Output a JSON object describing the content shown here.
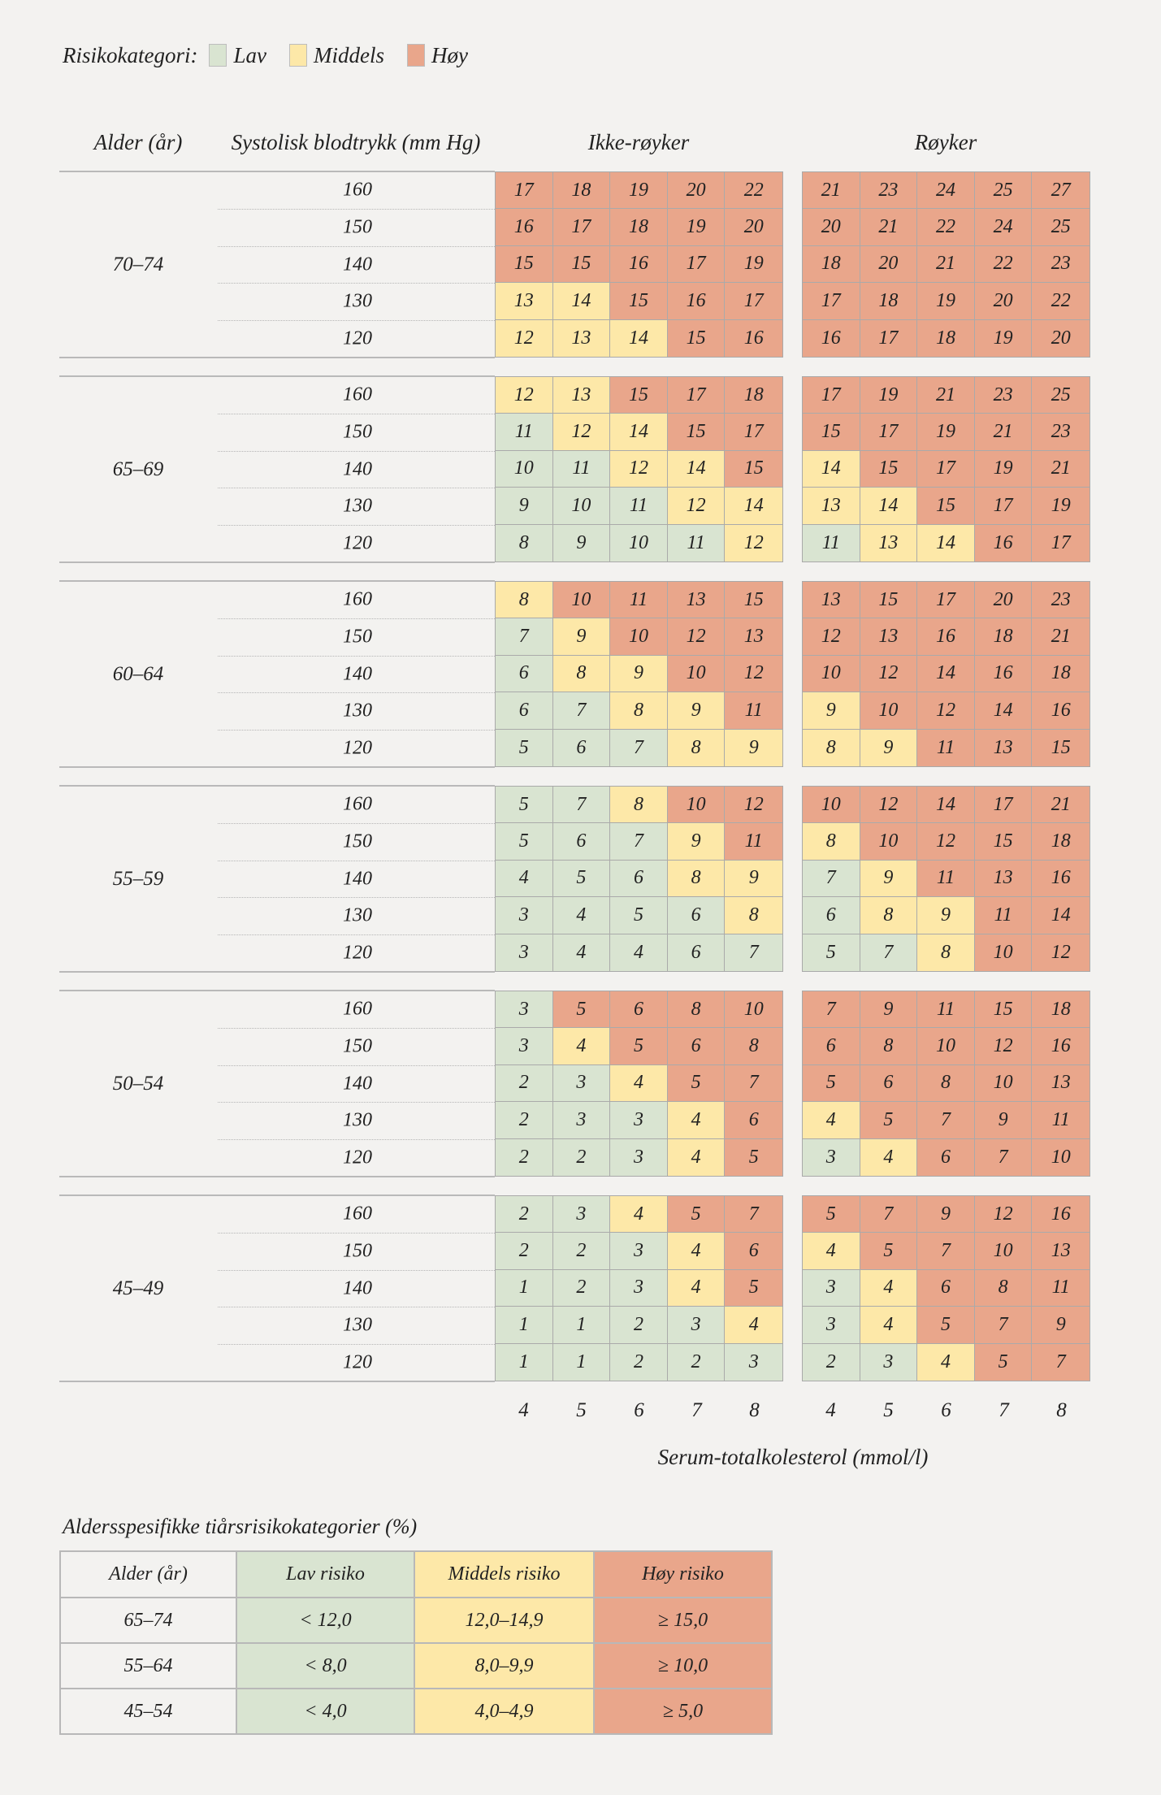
{
  "colors": {
    "L": "#d9e4d1",
    "M": "#fde8a8",
    "H": "#e9a68b"
  },
  "legend": {
    "title": "Risikokategori:",
    "items": [
      {
        "key": "L",
        "label": "Lav"
      },
      {
        "key": "M",
        "label": "Middels"
      },
      {
        "key": "H",
        "label": "Høy"
      }
    ]
  },
  "headers": {
    "age": "Alder (år)",
    "bp": "Systolisk blodtrykk (mm Hg)",
    "nonsmoker": "Ikke-røyker",
    "smoker": "Røyker"
  },
  "blocks": [
    {
      "age": "70–74",
      "rows": [
        {
          "bp": "160",
          "n": [
            "17",
            "18",
            "19",
            "20",
            "22"
          ],
          "nc": "HHHHH",
          "s": [
            "21",
            "23",
            "24",
            "25",
            "27"
          ],
          "sc": "HHHHH"
        },
        {
          "bp": "150",
          "n": [
            "16",
            "17",
            "18",
            "19",
            "20"
          ],
          "nc": "HHHHH",
          "s": [
            "20",
            "21",
            "22",
            "24",
            "25"
          ],
          "sc": "HHHHH"
        },
        {
          "bp": "140",
          "n": [
            "15",
            "15",
            "16",
            "17",
            "19"
          ],
          "nc": "HHHHH",
          "s": [
            "18",
            "20",
            "21",
            "22",
            "23"
          ],
          "sc": "HHHHH"
        },
        {
          "bp": "130",
          "n": [
            "13",
            "14",
            "15",
            "16",
            "17"
          ],
          "nc": "MMHHH",
          "s": [
            "17",
            "18",
            "19",
            "20",
            "22"
          ],
          "sc": "HHHHH"
        },
        {
          "bp": "120",
          "n": [
            "12",
            "13",
            "14",
            "15",
            "16"
          ],
          "nc": "MMMHH",
          "s": [
            "16",
            "17",
            "18",
            "19",
            "20"
          ],
          "sc": "HHHHH"
        }
      ]
    },
    {
      "age": "65–69",
      "rows": [
        {
          "bp": "160",
          "n": [
            "12",
            "13",
            "15",
            "17",
            "18"
          ],
          "nc": "MMHHH",
          "s": [
            "17",
            "19",
            "21",
            "23",
            "25"
          ],
          "sc": "HHHHH"
        },
        {
          "bp": "150",
          "n": [
            "11",
            "12",
            "14",
            "15",
            "17"
          ],
          "nc": "LMMHH",
          "s": [
            "15",
            "17",
            "19",
            "21",
            "23"
          ],
          "sc": "HHHHH"
        },
        {
          "bp": "140",
          "n": [
            "10",
            "11",
            "12",
            "14",
            "15"
          ],
          "nc": "LLMMH",
          "s": [
            "14",
            "15",
            "17",
            "19",
            "21"
          ],
          "sc": "MHHHH"
        },
        {
          "bp": "130",
          "n": [
            "9",
            "10",
            "11",
            "12",
            "14"
          ],
          "nc": "LLLMM",
          "s": [
            "13",
            "14",
            "15",
            "17",
            "19"
          ],
          "sc": "MMHHH"
        },
        {
          "bp": "120",
          "n": [
            "8",
            "9",
            "10",
            "11",
            "12"
          ],
          "nc": "LLLLM",
          "s": [
            "11",
            "13",
            "14",
            "16",
            "17"
          ],
          "sc": "LMMHH"
        }
      ]
    },
    {
      "age": "60–64",
      "rows": [
        {
          "bp": "160",
          "n": [
            "8",
            "10",
            "11",
            "13",
            "15"
          ],
          "nc": "MHHHH",
          "s": [
            "13",
            "15",
            "17",
            "20",
            "23"
          ],
          "sc": "HHHHH"
        },
        {
          "bp": "150",
          "n": [
            "7",
            "9",
            "10",
            "12",
            "13"
          ],
          "nc": "LMHHH",
          "s": [
            "12",
            "13",
            "16",
            "18",
            "21"
          ],
          "sc": "HHHHH"
        },
        {
          "bp": "140",
          "n": [
            "6",
            "8",
            "9",
            "10",
            "12"
          ],
          "nc": "LMMHH",
          "s": [
            "10",
            "12",
            "14",
            "16",
            "18"
          ],
          "sc": "HHHHH"
        },
        {
          "bp": "130",
          "n": [
            "6",
            "7",
            "8",
            "9",
            "11"
          ],
          "nc": "LLMMH",
          "s": [
            "9",
            "10",
            "12",
            "14",
            "16"
          ],
          "sc": "MHHHH"
        },
        {
          "bp": "120",
          "n": [
            "5",
            "6",
            "7",
            "8",
            "9"
          ],
          "nc": "LLLMM",
          "s": [
            "8",
            "9",
            "11",
            "13",
            "15"
          ],
          "sc": "MMHHH"
        }
      ]
    },
    {
      "age": "55–59",
      "rows": [
        {
          "bp": "160",
          "n": [
            "5",
            "7",
            "8",
            "10",
            "12"
          ],
          "nc": "LLMHH",
          "s": [
            "10",
            "12",
            "14",
            "17",
            "21"
          ],
          "sc": "HHHHH"
        },
        {
          "bp": "150",
          "n": [
            "5",
            "6",
            "7",
            "9",
            "11"
          ],
          "nc": "LLLMH",
          "s": [
            "8",
            "10",
            "12",
            "15",
            "18"
          ],
          "sc": "MHHHH"
        },
        {
          "bp": "140",
          "n": [
            "4",
            "5",
            "6",
            "8",
            "9"
          ],
          "nc": "LLLMM",
          "s": [
            "7",
            "9",
            "11",
            "13",
            "16"
          ],
          "sc": "LMHHH"
        },
        {
          "bp": "130",
          "n": [
            "3",
            "4",
            "5",
            "6",
            "8"
          ],
          "nc": "LLLLM",
          "s": [
            "6",
            "8",
            "9",
            "11",
            "14"
          ],
          "sc": "LMMHH"
        },
        {
          "bp": "120",
          "n": [
            "3",
            "4",
            "4",
            "6",
            "7"
          ],
          "nc": "LLLLL",
          "s": [
            "5",
            "7",
            "8",
            "10",
            "12"
          ],
          "sc": "LLMHH"
        }
      ]
    },
    {
      "age": "50–54",
      "rows": [
        {
          "bp": "160",
          "n": [
            "3",
            "5",
            "6",
            "8",
            "10"
          ],
          "nc": "LHHHH",
          "s": [
            "7",
            "9",
            "11",
            "15",
            "18"
          ],
          "sc": "HHHHH"
        },
        {
          "bp": "150",
          "n": [
            "3",
            "4",
            "5",
            "6",
            "8"
          ],
          "nc": "LMHHH",
          "s": [
            "6",
            "8",
            "10",
            "12",
            "16"
          ],
          "sc": "HHHHH"
        },
        {
          "bp": "140",
          "n": [
            "2",
            "3",
            "4",
            "5",
            "7"
          ],
          "nc": "LLMHH",
          "s": [
            "5",
            "6",
            "8",
            "10",
            "13"
          ],
          "sc": "HHHHH"
        },
        {
          "bp": "130",
          "n": [
            "2",
            "3",
            "3",
            "4",
            "6"
          ],
          "nc": "LLLMH",
          "s": [
            "4",
            "5",
            "7",
            "9",
            "11"
          ],
          "sc": "MHHHH"
        },
        {
          "bp": "120",
          "n": [
            "2",
            "2",
            "3",
            "4",
            "5"
          ],
          "nc": "LLLMH",
          "s": [
            "3",
            "4",
            "6",
            "7",
            "10"
          ],
          "sc": "LMHHH"
        }
      ]
    },
    {
      "age": "45–49",
      "rows": [
        {
          "bp": "160",
          "n": [
            "2",
            "3",
            "4",
            "5",
            "7"
          ],
          "nc": "LLMHH",
          "s": [
            "5",
            "7",
            "9",
            "12",
            "16"
          ],
          "sc": "HHHHH"
        },
        {
          "bp": "150",
          "n": [
            "2",
            "2",
            "3",
            "4",
            "6"
          ],
          "nc": "LLLMH",
          "s": [
            "4",
            "5",
            "7",
            "10",
            "13"
          ],
          "sc": "MHHHH"
        },
        {
          "bp": "140",
          "n": [
            "1",
            "2",
            "3",
            "4",
            "5"
          ],
          "nc": "LLLMH",
          "s": [
            "3",
            "4",
            "6",
            "8",
            "11"
          ],
          "sc": "LMHHH"
        },
        {
          "bp": "130",
          "n": [
            "1",
            "1",
            "2",
            "3",
            "4"
          ],
          "nc": "LLLLM",
          "s": [
            "3",
            "4",
            "5",
            "7",
            "9"
          ],
          "sc": "LMHHH"
        },
        {
          "bp": "120",
          "n": [
            "1",
            "1",
            "2",
            "2",
            "3"
          ],
          "nc": "LLLLL",
          "s": [
            "2",
            "3",
            "4",
            "5",
            "7"
          ],
          "sc": "LLMHH"
        }
      ]
    }
  ],
  "cholesterol_ticks": [
    "4",
    "5",
    "6",
    "7",
    "8"
  ],
  "axis_label": "Serum-totalkolesterol (mmol/l)",
  "category_table": {
    "title": "Aldersspesifikke tiårsrisikokategorier (%)",
    "header": [
      "Alder (år)",
      "Lav risiko",
      "Middels risiko",
      "Høy risiko"
    ],
    "rows": [
      [
        "65–74",
        "< 12,0",
        "12,0–14,9",
        "≥ 15,0"
      ],
      [
        "55–64",
        "< 8,0",
        "8,0–9,9",
        "≥ 10,0"
      ],
      [
        "45–54",
        "< 4,0",
        "4,0–4,9",
        "≥ 5,0"
      ]
    ]
  }
}
